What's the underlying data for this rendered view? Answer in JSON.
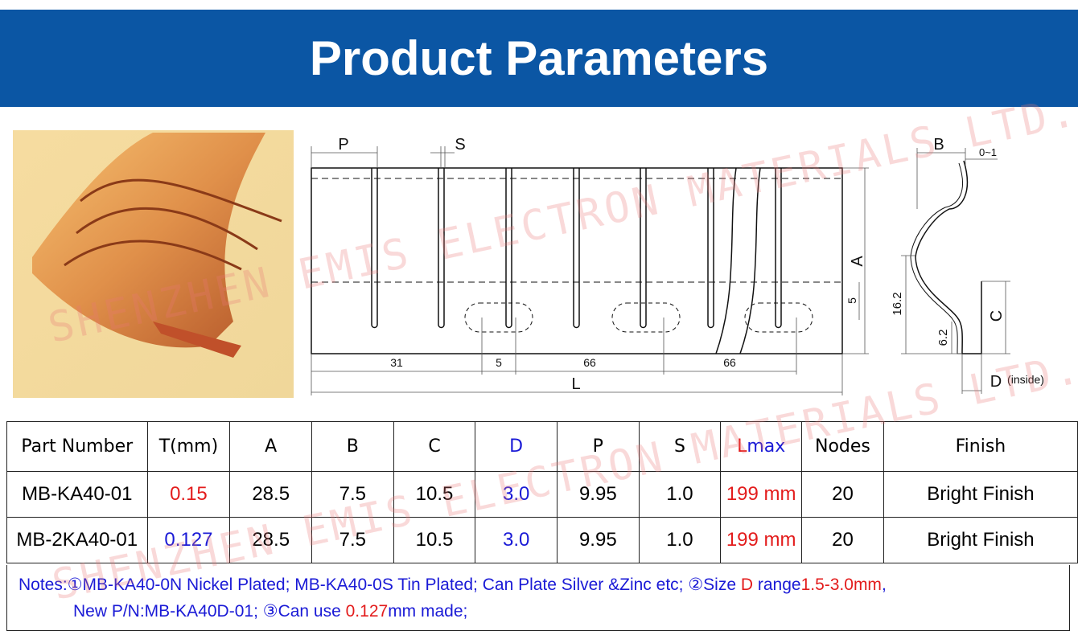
{
  "header": {
    "title": "Product Parameters"
  },
  "front_view": {
    "p": "P",
    "s": "S",
    "a": "A",
    "slot_depth": "5",
    "offset": "31",
    "oval_width": "5",
    "pitch_1": "66",
    "pitch_2": "66",
    "length": "L"
  },
  "side_view": {
    "b": "B",
    "gap": "0~1",
    "height": "16.2",
    "inner_height": "6.2",
    "c": "C",
    "d": "D",
    "d_note": "(inside)"
  },
  "watermark": "SHENZHEN EMIS ELECTRON MATERIALS LTD.CO",
  "table": {
    "headers": [
      "Part Number",
      "T(mm)",
      "A",
      "B",
      "C",
      "D",
      "P",
      "S",
      {
        "l": "L",
        "max": "max"
      },
      "Nodes",
      "Finish"
    ],
    "rows": [
      [
        "MB-KA40-01",
        "0.15",
        "28.5",
        "7.5",
        "10.5",
        "3.0",
        "9.95",
        "1.0",
        "199 mm",
        "20",
        "Bright Finish"
      ],
      [
        "MB-2KA40-01",
        "0.127",
        "28.5",
        "7.5",
        "10.5",
        "3.0",
        "9.95",
        "1.0",
        "199 mm",
        "20",
        "Bright Finish"
      ]
    ]
  },
  "notes": {
    "lines": [
      [
        {
          "text": "Notes:①MB-KA40-0N Nickel Plated; MB-KA40-0S Tin Plated; Can Plate Silver &Zinc etc; ②Size ",
          "color": "blue"
        },
        {
          "text": "D",
          "color": "red"
        },
        {
          "text": " range",
          "color": "blue"
        },
        {
          "text": "1.5-3.0mm",
          "color": "red"
        },
        {
          "text": ",",
          "color": "blue"
        }
      ],
      [
        {
          "text": "New P/N:MB-KA40D-01; ③Can use ",
          "color": "blue"
        },
        {
          "text": "0.127",
          "color": "red"
        },
        {
          "text": "mm made;",
          "color": "blue"
        }
      ]
    ]
  }
}
